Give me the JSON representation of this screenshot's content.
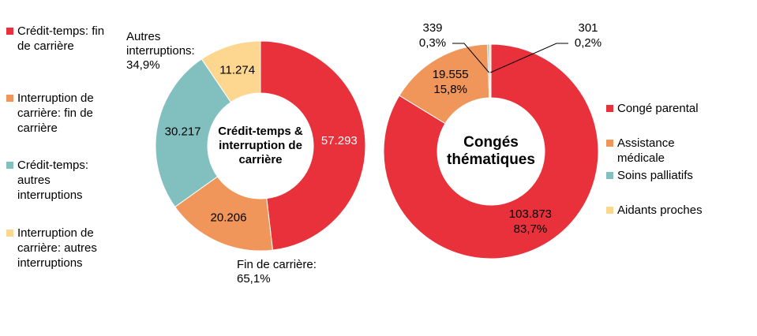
{
  "chart_data": [
    {
      "type": "pie",
      "donut": true,
      "center_label": "Crédit-temps & interruption de carrière",
      "categories": [
        "Crédit-temps: fin de carrière",
        "Interruption de carrière: fin de carrière",
        "Crédit-temps: autres interruptions",
        "Interruption de carrière: autres interruptions"
      ],
      "values": [
        57293,
        20206,
        30217,
        11274
      ],
      "value_labels": [
        "57.293",
        "20.206",
        "30.217",
        "11.274"
      ],
      "colors": [
        "#e8313a",
        "#f0965a",
        "#82c0c0",
        "#fdd68f"
      ],
      "annotations": [
        "Autres interruptions: 34,9%",
        "Fin de carrière: 65,1%"
      ],
      "legend": "left"
    },
    {
      "type": "pie",
      "donut": true,
      "center_label": "Congés thématiques",
      "categories": [
        "Congé parental",
        "Assistance médicale",
        "Soins palliatifs",
        "Aidants proches"
      ],
      "values": [
        103873,
        19555,
        339,
        301
      ],
      "value_labels": [
        "103.873",
        "19.555",
        "339",
        "301"
      ],
      "percents": [
        83.7,
        15.8,
        0.3,
        0.2
      ],
      "percent_labels": [
        "83,7%",
        "15,8%",
        "0,3%",
        "0,2%"
      ],
      "colors": [
        "#e8313a",
        "#f0965a",
        "#82c0c0",
        "#fdd68f"
      ],
      "legend": "right"
    }
  ]
}
